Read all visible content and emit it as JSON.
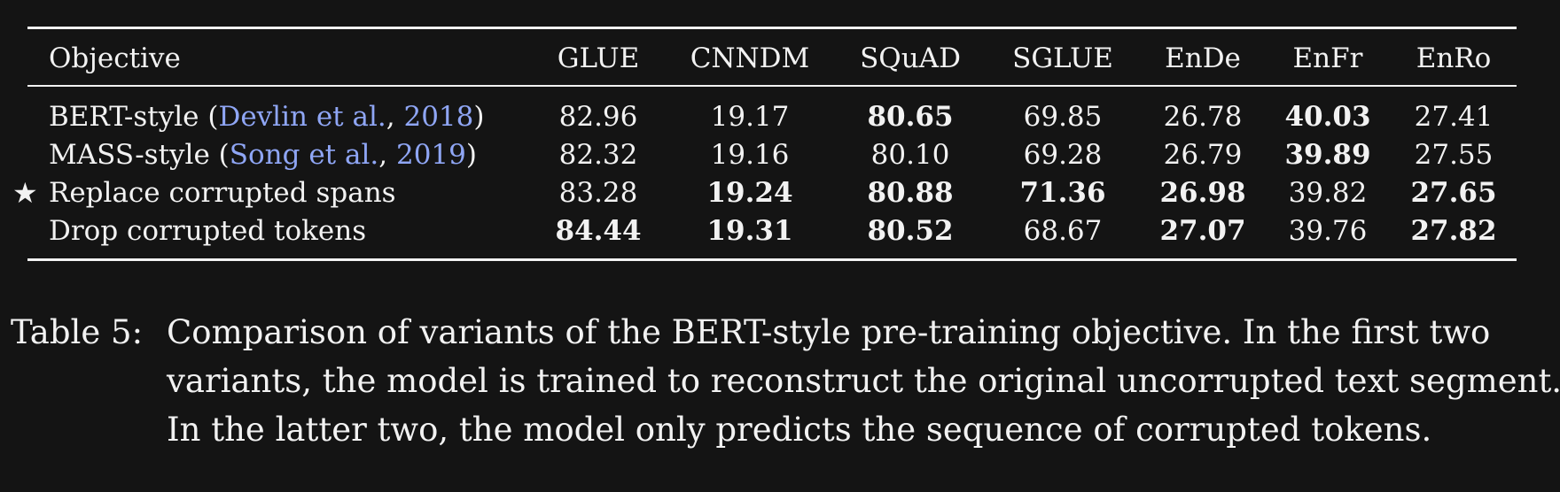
{
  "table": {
    "header": {
      "objective": "Objective",
      "columns": [
        "GLUE",
        "CNNDM",
        "SQuAD",
        "SGLUE",
        "EnDe",
        "EnFr",
        "EnRo"
      ]
    },
    "rows": [
      {
        "star": "",
        "objective": "BERT-style",
        "cite_open": " (",
        "cite_author": "Devlin et al.",
        "cite_sep": ", ",
        "cite_year": "2018",
        "cite_close": ")",
        "values": [
          "82.96",
          "19.17",
          "80.65",
          "69.85",
          "26.78",
          "40.03",
          "27.41"
        ],
        "bold": [
          false,
          false,
          true,
          false,
          false,
          true,
          false
        ]
      },
      {
        "star": "",
        "objective": "MASS-style",
        "cite_open": " (",
        "cite_author": "Song et al.",
        "cite_sep": ", ",
        "cite_year": "2019",
        "cite_close": ")",
        "values": [
          "82.32",
          "19.16",
          "80.10",
          "69.28",
          "26.79",
          "39.89",
          "27.55"
        ],
        "bold": [
          false,
          false,
          false,
          false,
          false,
          true,
          false
        ]
      },
      {
        "star": "★",
        "objective": "Replace corrupted spans",
        "cite_open": "",
        "cite_author": "",
        "cite_sep": "",
        "cite_year": "",
        "cite_close": "",
        "values": [
          "83.28",
          "19.24",
          "80.88",
          "71.36",
          "26.98",
          "39.82",
          "27.65"
        ],
        "bold": [
          false,
          true,
          true,
          true,
          true,
          false,
          true
        ]
      },
      {
        "star": "",
        "objective": "Drop corrupted tokens",
        "cite_open": "",
        "cite_author": "",
        "cite_sep": "",
        "cite_year": "",
        "cite_close": "",
        "values": [
          "84.44",
          "19.31",
          "80.52",
          "68.67",
          "27.07",
          "39.76",
          "27.82"
        ],
        "bold": [
          true,
          true,
          true,
          false,
          true,
          false,
          true
        ]
      }
    ]
  },
  "caption": {
    "label": "Table 5:",
    "lines": [
      "Comparison of variants of the BERT-style pre-training objective. In the first two",
      "variants, the model is trained to reconstruct the original uncorrupted text segment.",
      "In the latter two, the model only predicts the sequence of corrupted tokens."
    ]
  },
  "colors": {
    "background": "#141414",
    "text": "#f2f2f2",
    "citation": "#8fa6f5"
  }
}
